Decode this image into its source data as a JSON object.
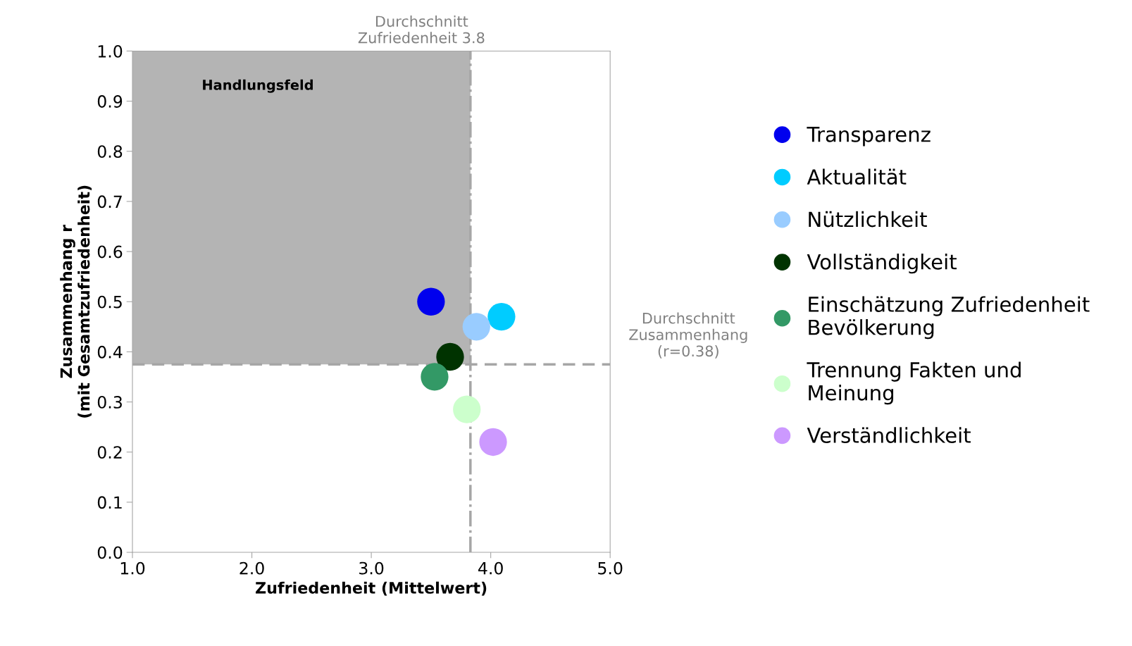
{
  "chart_data": {
    "type": "scatter",
    "xlabel": "Zufriedenheit (Mittelwert)",
    "ylabel": "Zusammenhang r\n(mit Gesamtzufriedenheit)",
    "xlim": [
      1.0,
      5.0
    ],
    "ylim": [
      0.0,
      1.0
    ],
    "xticks": [
      {
        "value": 1,
        "label": "1.0"
      },
      {
        "value": 2,
        "label": "2.0"
      },
      {
        "value": 3,
        "label": "3.0"
      },
      {
        "value": 4,
        "label": "4.0"
      },
      {
        "value": 5,
        "label": "5.0"
      }
    ],
    "yticks": [
      {
        "value": 0,
        "label": "0.0"
      },
      0.1,
      0.2,
      0.3,
      0.4,
      0.5,
      0.6,
      0.7,
      0.8,
      0.9,
      {
        "value": 1,
        "label": "1.0"
      }
    ],
    "marker": "circle",
    "grid": false,
    "legend": "right",
    "series": [
      {
        "name": "Transparenz",
        "color": "#0000ee",
        "x": [
          3.5
        ],
        "values": [
          0.5
        ]
      },
      {
        "name": "Aktualität",
        "color": "#00ccff",
        "x": [
          4.09
        ],
        "values": [
          0.47
        ]
      },
      {
        "name": "Nützlichkeit",
        "color": "#99ccff",
        "x": [
          3.88
        ],
        "values": [
          0.45
        ]
      },
      {
        "name": "Vollständigkeit",
        "color": "#003300",
        "x": [
          3.66
        ],
        "values": [
          0.39
        ]
      },
      {
        "name": "Einschätzung Zufriedenheit\nBevölkerung",
        "color": "#339966",
        "x": [
          3.53
        ],
        "values": [
          0.35
        ]
      },
      {
        "name": "Trennung Fakten und\nMeinung",
        "color": "#ccffcc",
        "x": [
          3.8
        ],
        "values": [
          0.285
        ]
      },
      {
        "name": "Verständlichkeit",
        "color": "#cc99ff",
        "x": [
          4.02
        ],
        "values": [
          0.22
        ]
      }
    ],
    "ref_lines": [
      {
        "axis": "x",
        "value": 3.83,
        "label": "Durchschnitt\nZufriedenheit 3.8",
        "color": "#a6a6a6",
        "line_style": "dashdot"
      },
      {
        "axis": "y",
        "value": 0.375,
        "label": "Durchschnitt\nZusammenhang\n(r=0.38)",
        "color": "#a6a6a6",
        "line_style": "dashed"
      }
    ],
    "annotations": [
      "Handlungsfeld"
    ]
  }
}
